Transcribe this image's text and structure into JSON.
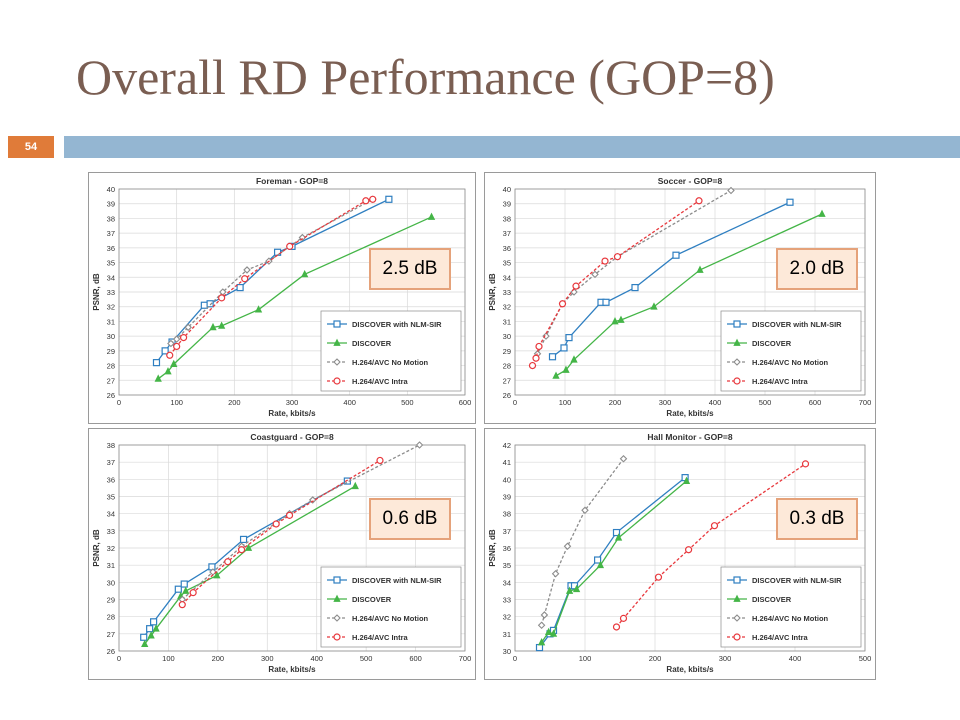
{
  "slide": {
    "title": "Overall RD Performance (GOP=8)",
    "page_number": "54",
    "colors": {
      "title": "#7a5e52",
      "badge": "#e07b39",
      "bar": "#94b6d2"
    }
  },
  "series_styles": [
    {
      "name": "DISCOVER with NLM-SIR",
      "color": "#2f7fc1",
      "marker": "square",
      "dash": ""
    },
    {
      "name": "DISCOVER",
      "color": "#44b547",
      "marker": "triangle",
      "dash": ""
    },
    {
      "name": "H.264/AVC No Motion",
      "color": "#8c8c8c",
      "marker": "diamond",
      "dash": "3,2"
    },
    {
      "name": "H.264/AVC Intra",
      "color": "#e8383d",
      "marker": "circle",
      "dash": "3,2"
    }
  ],
  "chart_data": [
    {
      "type": "line",
      "title": "Foreman - GOP=8",
      "xlabel": "Rate, kbits/s",
      "ylabel": "PSNR, dB",
      "xlim": [
        0,
        600
      ],
      "xstep": 100,
      "ylim": [
        26,
        40
      ],
      "ystep": 1,
      "gain_label": "2.5 dB",
      "legend": "bottom-right",
      "series": [
        {
          "name": "DISCOVER with NLM-SIR",
          "x": [
            65,
            80,
            92,
            148,
            158,
            210,
            275,
            300,
            468
          ],
          "y": [
            28.2,
            29.0,
            29.6,
            32.1,
            32.2,
            33.3,
            35.7,
            36.1,
            39.3
          ]
        },
        {
          "name": "DISCOVER",
          "x": [
            68,
            85,
            95,
            163,
            178,
            242,
            322,
            542
          ],
          "y": [
            27.1,
            27.6,
            28.1,
            30.6,
            30.7,
            31.8,
            34.2,
            38.1
          ]
        },
        {
          "name": "H.264/AVC No Motion",
          "x": [
            90,
            100,
            120,
            180,
            222,
            260,
            318,
            440
          ],
          "y": [
            29.5,
            29.8,
            30.6,
            33.0,
            34.5,
            35.1,
            36.7,
            39.3
          ]
        },
        {
          "name": "H.264/AVC Intra",
          "x": [
            88,
            100,
            112,
            178,
            218,
            296,
            428,
            440
          ],
          "y": [
            28.7,
            29.3,
            29.9,
            32.6,
            33.9,
            36.1,
            39.2,
            39.3
          ]
        }
      ]
    },
    {
      "type": "line",
      "title": "Soccer - GOP=8",
      "xlabel": "Rate, kbits/s",
      "ylabel": "PSNR, dB",
      "xlim": [
        0,
        700
      ],
      "xstep": 100,
      "ylim": [
        26,
        40
      ],
      "ystep": 1,
      "gain_label": "2.0 dB",
      "legend": "bottom-right",
      "series": [
        {
          "name": "DISCOVER with NLM-SIR",
          "x": [
            75,
            98,
            108,
            172,
            182,
            240,
            322,
            550
          ],
          "y": [
            28.6,
            29.2,
            29.9,
            32.3,
            32.3,
            33.3,
            35.5,
            39.1
          ]
        },
        {
          "name": "DISCOVER",
          "x": [
            82,
            102,
            118,
            200,
            212,
            278,
            370,
            614
          ],
          "y": [
            27.3,
            27.7,
            28.4,
            31.0,
            31.1,
            32.0,
            34.5,
            38.3
          ]
        },
        {
          "name": "H.264/AVC No Motion",
          "x": [
            35,
            45,
            62,
            95,
            118,
            160,
            205,
            432
          ],
          "y": [
            28.0,
            28.8,
            30.0,
            32.2,
            33.0,
            34.2,
            35.4,
            39.9
          ]
        },
        {
          "name": "H.264/AVC Intra",
          "x": [
            35,
            42,
            48,
            95,
            122,
            180,
            205,
            368
          ],
          "y": [
            28.0,
            28.5,
            29.3,
            32.2,
            33.4,
            35.1,
            35.4,
            39.2
          ]
        }
      ]
    },
    {
      "type": "line",
      "title": "Coastguard - GOP=8",
      "xlabel": "Rate, kbits/s",
      "ylabel": "PSNR, dB",
      "xlim": [
        0,
        700
      ],
      "xstep": 100,
      "ylim": [
        26,
        38
      ],
      "ystep": 1,
      "gain_label": "0.6 dB",
      "legend": "bottom-right",
      "series": [
        {
          "name": "DISCOVER with NLM-SIR",
          "x": [
            50,
            62,
            70,
            120,
            132,
            188,
            252,
            462
          ],
          "y": [
            26.8,
            27.3,
            27.7,
            29.6,
            29.9,
            30.9,
            32.5,
            35.9
          ]
        },
        {
          "name": "DISCOVER",
          "x": [
            52,
            65,
            75,
            125,
            135,
            198,
            262,
            478
          ],
          "y": [
            26.4,
            26.9,
            27.3,
            29.2,
            29.5,
            30.4,
            32.0,
            35.6
          ]
        },
        {
          "name": "H.264/AVC No Motion",
          "x": [
            128,
            190,
            248,
            345,
            392,
            608
          ],
          "y": [
            29.0,
            30.6,
            32.1,
            34.0,
            34.8,
            38.0
          ]
        },
        {
          "name": "H.264/AVC Intra",
          "x": [
            128,
            150,
            220,
            248,
            318,
            345,
            528
          ],
          "y": [
            28.7,
            29.4,
            31.2,
            31.9,
            33.4,
            33.9,
            37.1
          ]
        }
      ]
    },
    {
      "type": "line",
      "title": "Hall Monitor - GOP=8",
      "xlabel": "Rate, kbits/s",
      "ylabel": "PSNR, dB",
      "xlim": [
        0,
        500
      ],
      "xstep": 100,
      "ylim": [
        30,
        42
      ],
      "ystep": 1,
      "gain_label": "0.3 dB",
      "legend": "bottom-right",
      "series": [
        {
          "name": "DISCOVER with NLM-SIR",
          "x": [
            35,
            50,
            55,
            80,
            85,
            118,
            145,
            243
          ],
          "y": [
            30.2,
            31.0,
            31.2,
            33.8,
            33.8,
            35.3,
            36.9,
            40.1
          ]
        },
        {
          "name": "DISCOVER",
          "x": [
            38,
            48,
            55,
            78,
            88,
            122,
            148,
            245
          ],
          "y": [
            30.5,
            31.1,
            31.0,
            33.5,
            33.6,
            35.0,
            36.6,
            39.9
          ]
        },
        {
          "name": "H.264/AVC No Motion",
          "x": [
            38,
            42,
            58,
            75,
            100,
            155
          ],
          "y": [
            31.5,
            32.1,
            34.5,
            36.1,
            38.2,
            41.2
          ]
        },
        {
          "name": "H.264/AVC Intra",
          "x": [
            145,
            155,
            205,
            248,
            285,
            415
          ],
          "y": [
            31.4,
            31.9,
            34.3,
            35.9,
            37.3,
            40.9
          ]
        }
      ]
    }
  ]
}
